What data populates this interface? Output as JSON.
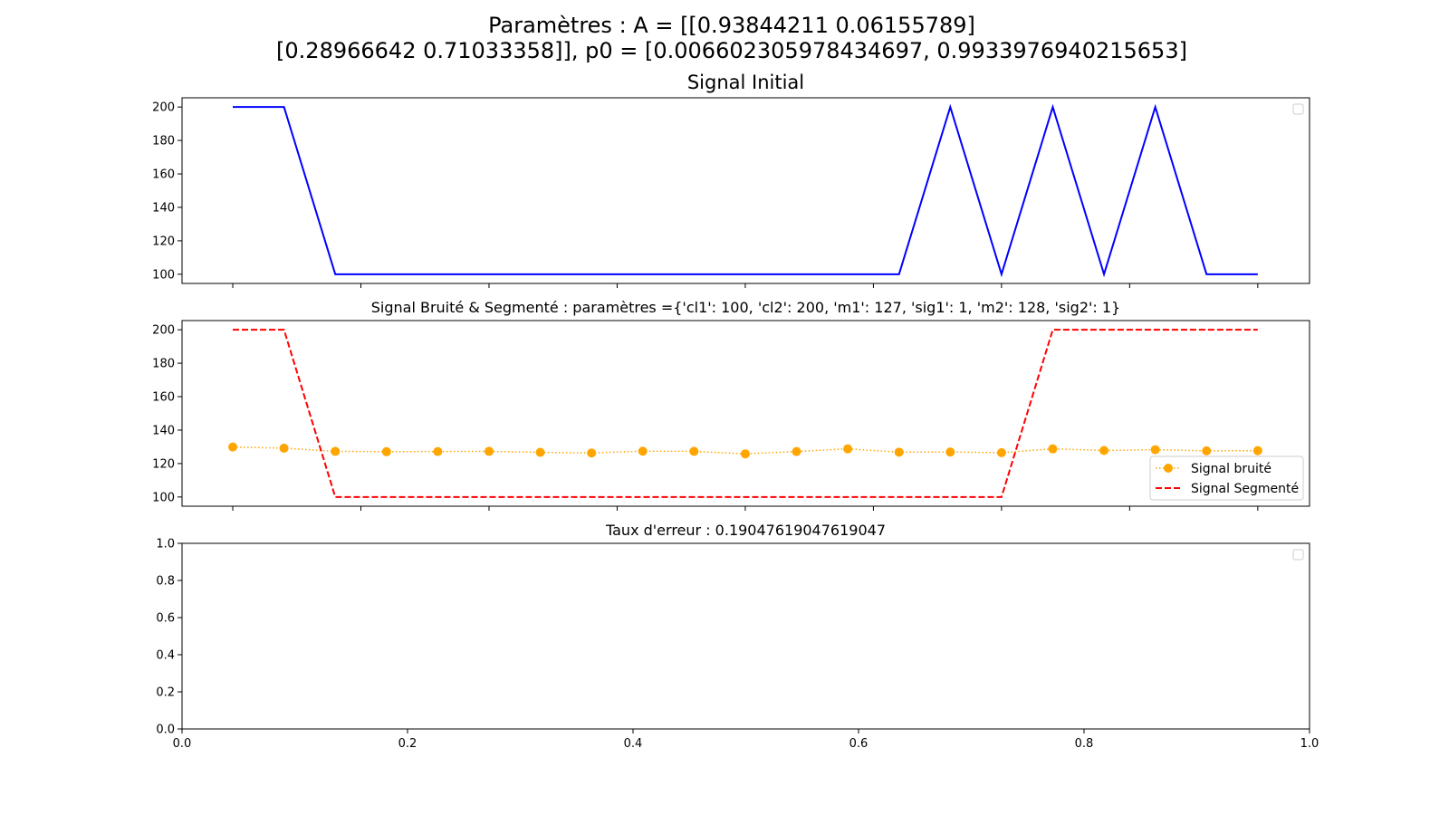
{
  "figure": {
    "suptitle_line1": "Paramètres : A = [[0.93844211 0.06155789]",
    "suptitle_line2": "[0.28966642 0.71033358]], p0 = [0.006602305978434697, 0.9933976940215653]",
    "background": "#ffffff"
  },
  "chart_data": [
    {
      "type": "line",
      "title": "Signal Initial",
      "xlabel": "",
      "ylabel": "",
      "x": [
        0.0,
        0.04545,
        0.09091,
        0.13636,
        0.18182,
        0.22727,
        0.27273,
        0.31818,
        0.36364,
        0.40909,
        0.45455,
        0.5,
        0.54545,
        0.59091,
        0.63636,
        0.68182,
        0.72727,
        0.77273,
        0.81818,
        0.86364,
        0.90909
      ],
      "xlim": [
        -0.045,
        0.955
      ],
      "ylim": [
        94.5,
        205.5
      ],
      "yticks": [
        100,
        120,
        140,
        160,
        180,
        200
      ],
      "xticks_unlabeled": [
        0.0,
        0.11364,
        0.22727,
        0.34091,
        0.45455,
        0.56818,
        0.68182,
        0.79545,
        0.90909
      ],
      "grid": false,
      "legend": "top-right (empty)",
      "series": [
        {
          "color": "#0000ff",
          "style": "solid",
          "values": [
            200,
            200,
            100,
            100,
            100,
            100,
            100,
            100,
            100,
            100,
            100,
            100,
            100,
            100,
            200,
            100,
            200,
            100,
            200,
            100,
            100
          ]
        }
      ]
    },
    {
      "type": "line",
      "title": "Signal Bruité & Segmenté : paramètres ={'cl1': 100, 'cl2': 200, 'm1': 127, 'sig1': 1, 'm2': 128, 'sig2': 1}",
      "xlabel": "",
      "ylabel": "",
      "x": [
        0.0,
        0.04545,
        0.09091,
        0.13636,
        0.18182,
        0.22727,
        0.27273,
        0.31818,
        0.36364,
        0.40909,
        0.45455,
        0.5,
        0.54545,
        0.59091,
        0.63636,
        0.68182,
        0.72727,
        0.77273,
        0.81818,
        0.86364,
        0.90909
      ],
      "xlim": [
        -0.045,
        0.955
      ],
      "ylim": [
        94.5,
        205.5
      ],
      "yticks": [
        100,
        120,
        140,
        160,
        180,
        200
      ],
      "xticks_unlabeled": [
        0.0,
        0.11364,
        0.22727,
        0.34091,
        0.45455,
        0.56818,
        0.68182,
        0.79545,
        0.90909
      ],
      "grid": false,
      "legend": "lower-right",
      "series": [
        {
          "name": "Signal bruité",
          "color": "#ffa500",
          "style": "dotted",
          "marker": "circle",
          "values": [
            129.9,
            129.2,
            127.3,
            127.1,
            127.2,
            127.3,
            126.7,
            126.3,
            127.4,
            127.3,
            125.8,
            127.2,
            128.8,
            126.8,
            126.9,
            126.5,
            128.8,
            127.8,
            128.3,
            127.6,
            127.7
          ]
        },
        {
          "name": "Signal Segmenté",
          "color": "#ff0000",
          "style": "dashed",
          "values": [
            200,
            200,
            100,
            100,
            100,
            100,
            100,
            100,
            100,
            100,
            100,
            100,
            100,
            100,
            100,
            100,
            200,
            200,
            200,
            200,
            200
          ]
        }
      ]
    },
    {
      "type": "line",
      "title": "Taux d'erreur : 0.19047619047619047",
      "xlabel": "",
      "ylabel": "",
      "xlim": [
        0.0,
        1.0
      ],
      "ylim": [
        0.0,
        1.0
      ],
      "xticks": [
        0.0,
        0.2,
        0.4,
        0.6,
        0.8,
        1.0
      ],
      "yticks": [
        0.0,
        0.2,
        0.4,
        0.6,
        0.8,
        1.0
      ],
      "grid": false,
      "legend": "top-right (empty)",
      "series": []
    }
  ]
}
